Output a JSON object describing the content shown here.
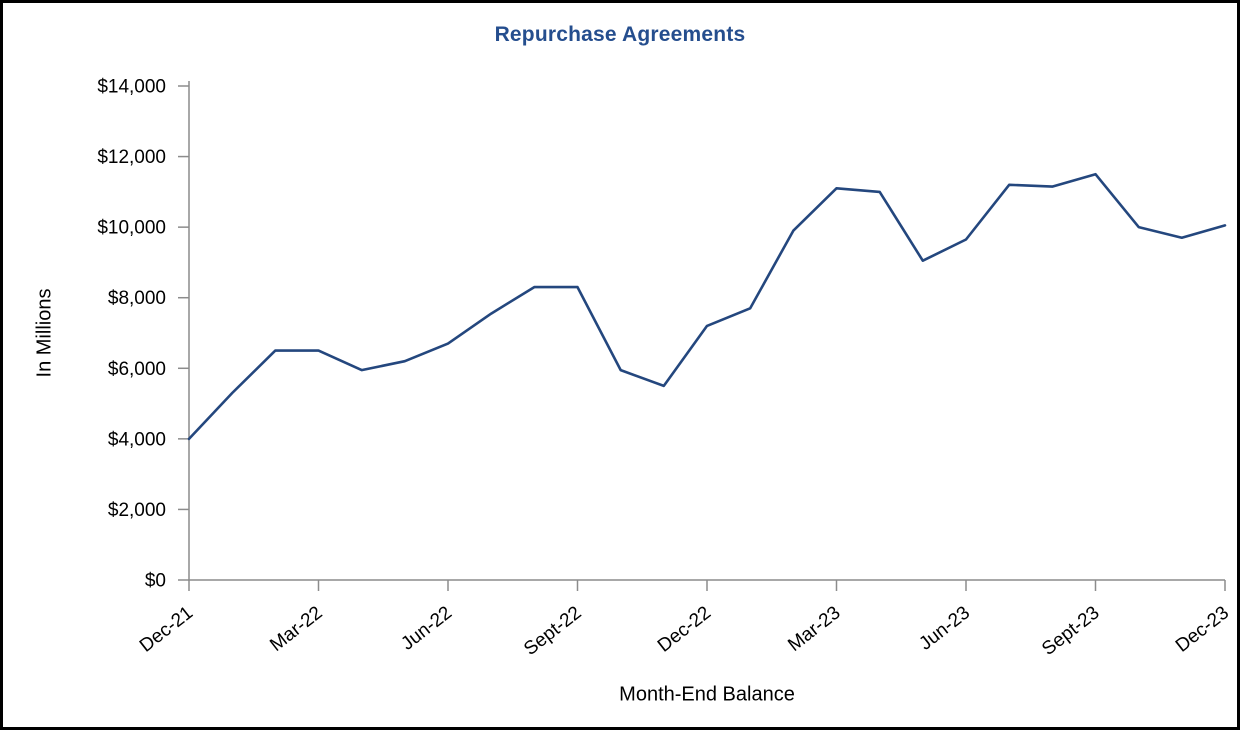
{
  "chart_data": {
    "type": "line",
    "title": "Repurchase Agreements",
    "xlabel": "Month-End Balance",
    "ylabel": "In Millions",
    "series_name": "Repurchase Agreements",
    "x": [
      "Dec-21",
      "Jan-22",
      "Feb-22",
      "Mar-22",
      "Apr-22",
      "May-22",
      "Jun-22",
      "Jul-22",
      "Aug-22",
      "Sept-22",
      "Oct-22",
      "Nov-22",
      "Dec-22",
      "Jan-23",
      "Feb-23",
      "Mar-23",
      "Apr-23",
      "May-23",
      "Jun-23",
      "Jul-23",
      "Aug-23",
      "Sept-23",
      "Oct-23",
      "Nov-23",
      "Dec-23"
    ],
    "values": [
      4000,
      5300,
      6500,
      6500,
      5950,
      6200,
      6700,
      7550,
      8300,
      8300,
      5950,
      5500,
      7200,
      7700,
      9900,
      11100,
      11000,
      9050,
      9650,
      11200,
      11150,
      11500,
      10000,
      9700,
      10050
    ],
    "ylim": [
      0,
      14000
    ],
    "y_ticks": [
      {
        "value": 0,
        "label": "$0"
      },
      {
        "value": 2000,
        "label": "$2,000"
      },
      {
        "value": 4000,
        "label": "$4,000"
      },
      {
        "value": 6000,
        "label": "$6,000"
      },
      {
        "value": 8000,
        "label": "$8,000"
      },
      {
        "value": 10000,
        "label": "$10,000"
      },
      {
        "value": 12000,
        "label": "$12,000"
      },
      {
        "value": 14000,
        "label": "$14,000"
      }
    ],
    "x_tick_every": 3,
    "x_tick_labels": [
      "Dec-21",
      "Mar-22",
      "Jun-22",
      "Sept-22",
      "Dec-22",
      "Mar-23",
      "Jun-23",
      "Sept-23",
      "Dec-23"
    ],
    "x_label_rotation_deg": -38,
    "grid": false,
    "legend": "none",
    "colors": {
      "line": "#24477E",
      "title": "#254E8E",
      "axis": "#8C8C8C",
      "text": "#000000",
      "frame_border": "#000000",
      "background": "#FFFFFF"
    }
  }
}
